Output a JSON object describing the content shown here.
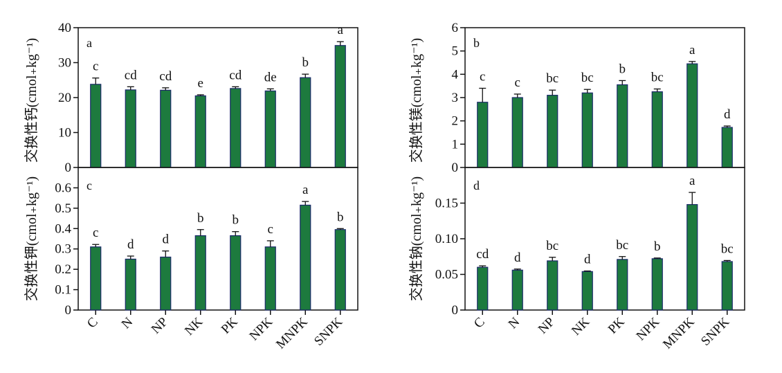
{
  "figure": {
    "categories": [
      "C",
      "N",
      "NP",
      "NK",
      "PK",
      "NPK",
      "MNPK",
      "SNPK"
    ],
    "bar_color": "#1d7a3e",
    "bar_edge_color": "#1c2a6b",
    "ylabels": {
      "left_top": "交换性钙(cmol₊kg⁻¹)",
      "left_bottom": "交换性钾(cmol₊kg⁻¹)",
      "right_top": "交换性镁(cmol₊kg⁻¹)",
      "right_bottom": "交换性钠(cmol₊kg⁻¹)"
    }
  },
  "chart_data": [
    {
      "id": "a",
      "type": "bar",
      "panel_label": "a",
      "categories": [
        "C",
        "N",
        "NP",
        "NK",
        "PK",
        "NPK",
        "MNPK",
        "SNPK"
      ],
      "values": [
        23.8,
        22.2,
        22.1,
        20.5,
        22.6,
        21.9,
        25.7,
        34.9
      ],
      "errors": [
        1.8,
        0.9,
        0.7,
        0.3,
        0.5,
        0.6,
        1.0,
        1.1
      ],
      "significance": [
        "c",
        "cd",
        "cd",
        "e",
        "cd",
        "de",
        "b",
        "a"
      ],
      "ylim": [
        0,
        40
      ],
      "yticks": [
        0,
        10,
        20,
        30,
        40
      ],
      "tick_labels": [
        "0",
        "10",
        "20",
        "30",
        "40"
      ],
      "ylabel": "交换性钙(cmol₊kg⁻¹)",
      "xlabel": ""
    },
    {
      "id": "b",
      "type": "bar",
      "panel_label": "b",
      "categories": [
        "C",
        "N",
        "NP",
        "NK",
        "PK",
        "NPK",
        "MNPK",
        "SNPK"
      ],
      "values": [
        2.8,
        3.0,
        3.1,
        3.2,
        3.55,
        3.25,
        4.45,
        1.72
      ],
      "errors": [
        0.6,
        0.15,
        0.22,
        0.15,
        0.18,
        0.12,
        0.1,
        0.06
      ],
      "significance": [
        "c",
        "c",
        "bc",
        "bc",
        "b",
        "bc",
        "a",
        "d"
      ],
      "ylim": [
        0,
        6
      ],
      "yticks": [
        0,
        1,
        2,
        3,
        4,
        5,
        6
      ],
      "tick_labels": [
        "0",
        "1",
        "2",
        "3",
        "4",
        "5",
        "6"
      ],
      "ylabel": "交换性镁(cmol₊kg⁻¹)",
      "xlabel": ""
    },
    {
      "id": "c",
      "type": "bar",
      "panel_label": "c",
      "categories": [
        "C",
        "N",
        "NP",
        "NK",
        "PK",
        "NPK",
        "MNPK",
        "SNPK"
      ],
      "values": [
        0.31,
        0.25,
        0.26,
        0.365,
        0.365,
        0.31,
        0.515,
        0.395
      ],
      "errors": [
        0.012,
        0.015,
        0.03,
        0.03,
        0.02,
        0.03,
        0.018,
        0.005
      ],
      "significance": [
        "c",
        "d",
        "d",
        "b",
        "b",
        "c",
        "a",
        "b"
      ],
      "ylim": [
        0,
        0.7
      ],
      "yticks": [
        0,
        0.1,
        0.2,
        0.3,
        0.4,
        0.5,
        0.6
      ],
      "tick_labels": [
        "0",
        "0.1",
        "0.2",
        "0.3",
        "0.4",
        "0.5",
        "0.6"
      ],
      "ylabel": "交换性钾(cmol₊kg⁻¹)",
      "xlabel": ""
    },
    {
      "id": "d",
      "type": "bar",
      "panel_label": "d",
      "categories": [
        "C",
        "N",
        "NP",
        "NK",
        "PK",
        "NPK",
        "MNPK",
        "SNPK"
      ],
      "values": [
        0.06,
        0.056,
        0.069,
        0.054,
        0.071,
        0.072,
        0.148,
        0.068
      ],
      "errors": [
        0.002,
        0.0015,
        0.005,
        0.0008,
        0.004,
        0.001,
        0.017,
        0.0015
      ],
      "significance": [
        "cd",
        "d",
        "bc",
        "d",
        "bc",
        "b",
        "a",
        "bc"
      ],
      "ylim": [
        0,
        0.2
      ],
      "yticks": [
        0,
        0.05,
        0.1,
        0.15
      ],
      "tick_labels": [
        "0",
        "0.05",
        "0.10",
        "0.15"
      ],
      "ylabel": "交换性钠(cmol₊kg⁻¹)",
      "xlabel": ""
    }
  ]
}
